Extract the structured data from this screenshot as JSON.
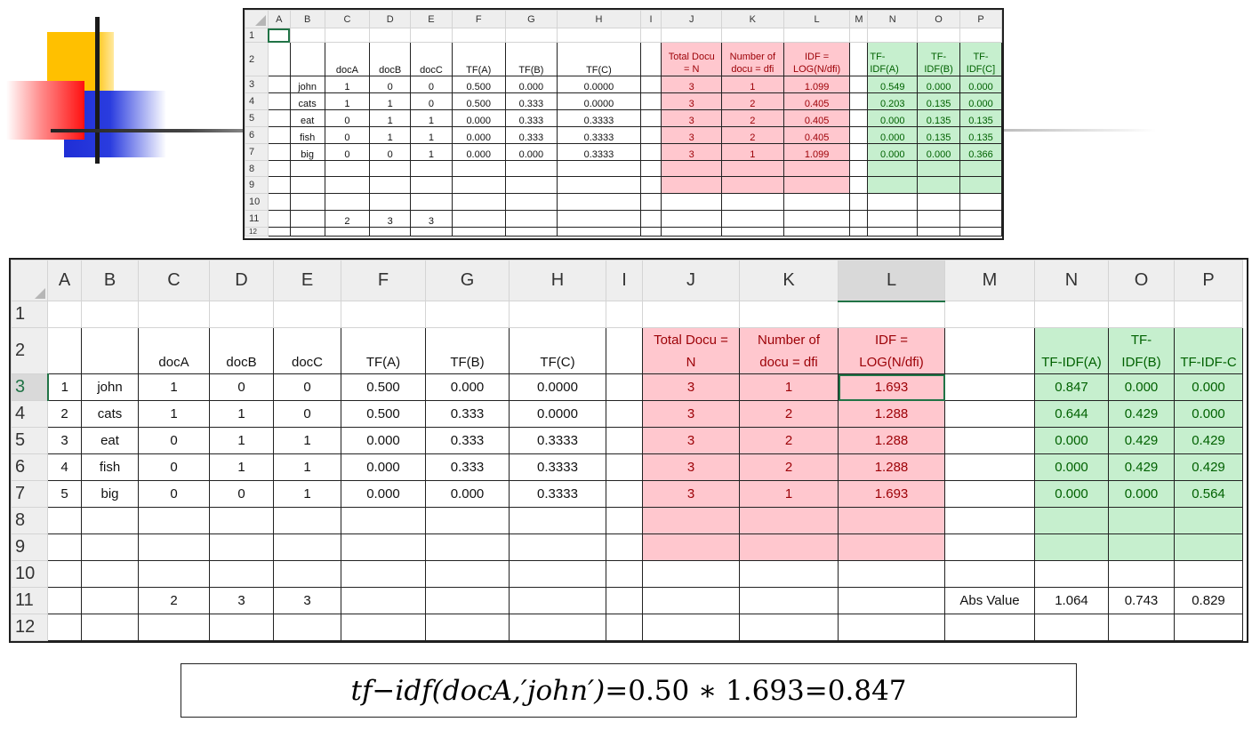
{
  "colors": {
    "pink_fill": "#ffc7ce",
    "pink_text": "#9c0006",
    "green_fill": "#c6efce",
    "green_text": "#006100",
    "select": "#217346"
  },
  "sheet_small": {
    "cols": [
      "A",
      "B",
      "C",
      "D",
      "E",
      "F",
      "G",
      "H",
      "I",
      "J",
      "K",
      "L",
      "M",
      "N",
      "O",
      "P"
    ],
    "row_nums": [
      "1",
      "2",
      "3",
      "4",
      "5",
      "6",
      "7",
      "8",
      "9",
      "10",
      "11",
      "12"
    ],
    "headers": {
      "docA": "docA",
      "docB": "docB",
      "docC": "docC",
      "tfA": "TF(A)",
      "tfB": "TF(B)",
      "tfC": "TF(C)",
      "total_l1": "Total Docu",
      "total_l2": "= N",
      "num_l1": "Number of",
      "num_l2": "docu = dfi",
      "idf_l1": "IDF =",
      "idf_l2": "LOG(N/dfi)",
      "tfidfA_l1": "TF-",
      "tfidfA_l2": "IDF(A)",
      "tfidfB_l1": "TF-",
      "tfidfB_l2": "IDF(B)",
      "tfidfC_l1": "TF-",
      "tfidfC_l2": "IDF(C]"
    },
    "rows": [
      {
        "term": "john",
        "a": "1",
        "b": "0",
        "c": "0",
        "tfa": "0.500",
        "tfb": "0.000",
        "tfc": "0.0000",
        "n": "3",
        "dfi": "1",
        "idf": "1.099",
        "wa": "0.549",
        "wb": "0.000",
        "wc": "0.000"
      },
      {
        "term": "cats",
        "a": "1",
        "b": "1",
        "c": "0",
        "tfa": "0.500",
        "tfb": "0.333",
        "tfc": "0.0000",
        "n": "3",
        "dfi": "2",
        "idf": "0.405",
        "wa": "0.203",
        "wb": "0.135",
        "wc": "0.000"
      },
      {
        "term": "eat",
        "a": "0",
        "b": "1",
        "c": "1",
        "tfa": "0.000",
        "tfb": "0.333",
        "tfc": "0.3333",
        "n": "3",
        "dfi": "2",
        "idf": "0.405",
        "wa": "0.000",
        "wb": "0.135",
        "wc": "0.135"
      },
      {
        "term": "fish",
        "a": "0",
        "b": "1",
        "c": "1",
        "tfa": "0.000",
        "tfb": "0.333",
        "tfc": "0.3333",
        "n": "3",
        "dfi": "2",
        "idf": "0.405",
        "wa": "0.000",
        "wb": "0.135",
        "wc": "0.135"
      },
      {
        "term": "big",
        "a": "0",
        "b": "0",
        "c": "1",
        "tfa": "0.000",
        "tfb": "0.000",
        "tfc": "0.3333",
        "n": "3",
        "dfi": "1",
        "idf": "1.099",
        "wa": "0.000",
        "wb": "0.000",
        "wc": "0.366"
      }
    ],
    "totals": {
      "a": "2",
      "b": "3",
      "c": "3"
    }
  },
  "sheet_large": {
    "cols": [
      "A",
      "B",
      "C",
      "D",
      "E",
      "F",
      "G",
      "H",
      "I",
      "J",
      "K",
      "L",
      "M",
      "N",
      "O",
      "P"
    ],
    "row_nums": [
      "1",
      "2",
      "3",
      "4",
      "5",
      "6",
      "7",
      "8",
      "9",
      "10",
      "11",
      "12"
    ],
    "headers": {
      "docA": "docA",
      "docB": "docB",
      "docC": "docC",
      "tfA": "TF(A)",
      "tfB": "TF(B)",
      "tfC": "TF(C)",
      "total_l1": "Total Docu =",
      "total_l2": "N",
      "num_l1": "Number of",
      "num_l2": "docu = dfi",
      "idf_l1": "IDF =",
      "idf_l2": "LOG(N/dfi)",
      "tfidfA": "TF-IDF(A)",
      "tfidfB_l1": "TF-",
      "tfidfB_l2": "IDF(B)",
      "tfidfC": "TF-IDF-C"
    },
    "rows": [
      {
        "idx": "1",
        "term": "john",
        "a": "1",
        "b": "0",
        "c": "0",
        "tfa": "0.500",
        "tfb": "0.000",
        "tfc": "0.0000",
        "n": "3",
        "dfi": "1",
        "idf": "1.693",
        "wa": "0.847",
        "wb": "0.000",
        "wc": "0.000"
      },
      {
        "idx": "2",
        "term": "cats",
        "a": "1",
        "b": "1",
        "c": "0",
        "tfa": "0.500",
        "tfb": "0.333",
        "tfc": "0.0000",
        "n": "3",
        "dfi": "2",
        "idf": "1.288",
        "wa": "0.644",
        "wb": "0.429",
        "wc": "0.000"
      },
      {
        "idx": "3",
        "term": "eat",
        "a": "0",
        "b": "1",
        "c": "1",
        "tfa": "0.000",
        "tfb": "0.333",
        "tfc": "0.3333",
        "n": "3",
        "dfi": "2",
        "idf": "1.288",
        "wa": "0.000",
        "wb": "0.429",
        "wc": "0.429"
      },
      {
        "idx": "4",
        "term": "fish",
        "a": "0",
        "b": "1",
        "c": "1",
        "tfa": "0.000",
        "tfb": "0.333",
        "tfc": "0.3333",
        "n": "3",
        "dfi": "2",
        "idf": "1.288",
        "wa": "0.000",
        "wb": "0.429",
        "wc": "0.429"
      },
      {
        "idx": "5",
        "term": "big",
        "a": "0",
        "b": "0",
        "c": "1",
        "tfa": "0.000",
        "tfb": "0.000",
        "tfc": "0.3333",
        "n": "3",
        "dfi": "1",
        "idf": "1.693",
        "wa": "0.000",
        "wb": "0.000",
        "wc": "0.564"
      }
    ],
    "totals": {
      "a": "2",
      "b": "3",
      "c": "3"
    },
    "abs_label": "Abs Value",
    "abs": {
      "wa": "1.064",
      "wb": "0.743",
      "wc": "0.829"
    }
  },
  "formula": {
    "lhs_fn": "tf",
    "minus": " − ",
    "idf_fn": "idf",
    "args": "(docA,′john′)",
    "eq1": " = ",
    "mid": "0.50 ∗ 1.693",
    "eq2": " = ",
    "result": "0.847"
  }
}
